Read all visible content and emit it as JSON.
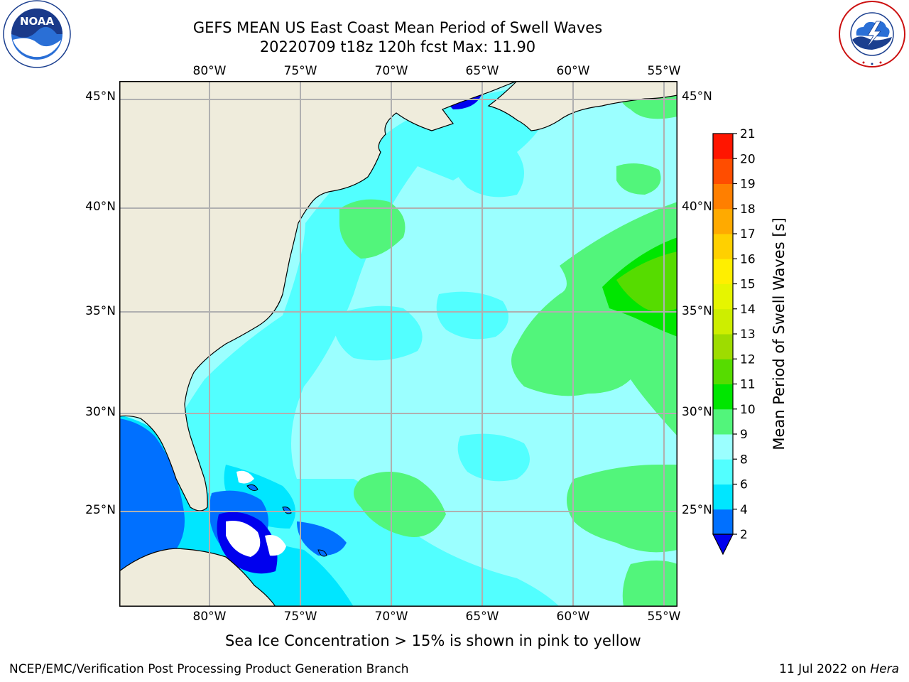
{
  "header": {
    "title_line1": "GEFS MEAN US East Coast Mean Period of Swell Waves",
    "title_line2": "20220709 t18z 120h fcst   Max: 11.90"
  },
  "logos": {
    "left": {
      "icon": "noaa-logo-icon",
      "text": "NOAA",
      "ring_text": "NATIONAL OCEANIC AND ATMOSPHERIC ADMINISTRATION · U.S. DEPARTMENT OF COMMERCE"
    },
    "right": {
      "icon": "nws-logo-icon",
      "ring_text": "NATIONAL WEATHER SERVICE"
    }
  },
  "map": {
    "lon_ticks": [
      "80°W",
      "75°W",
      "70°W",
      "65°W",
      "60°W",
      "55°W"
    ],
    "lat_ticks": [
      "45°N",
      "40°N",
      "35°N",
      "30°N",
      "25°N"
    ],
    "lon_range": [
      -85,
      -54.2
    ],
    "lat_range": [
      20.5,
      46
    ],
    "land_color": "#efecdc",
    "grid_color": "#b0b0b0"
  },
  "colorbar": {
    "title": "Mean Period of Swell Waves [s]",
    "ticks": [
      "2",
      "4",
      "6",
      "8",
      "9",
      "10",
      "11",
      "12",
      "13",
      "14",
      "15",
      "16",
      "17",
      "18",
      "19",
      "20",
      "21"
    ],
    "extend_color": "#0000ee",
    "colors": [
      "#0070ff",
      "#00e6ff",
      "#52ffff",
      "#9bffff",
      "#52f57b",
      "#00e600",
      "#56dc00",
      "#9edc00",
      "#cdee00",
      "#e6f500",
      "#ffef00",
      "#ffd000",
      "#ffaa00",
      "#ff7f00",
      "#ff4d00",
      "#ff1500"
    ]
  },
  "footer": {
    "note": "Sea Ice Concentration > 15% is shown in pink to yellow",
    "left": "NCEP/EMC/Verification Post Processing Product Generation Branch",
    "right_date": "11 Jul 2022 on",
    "right_host": "Hera"
  }
}
